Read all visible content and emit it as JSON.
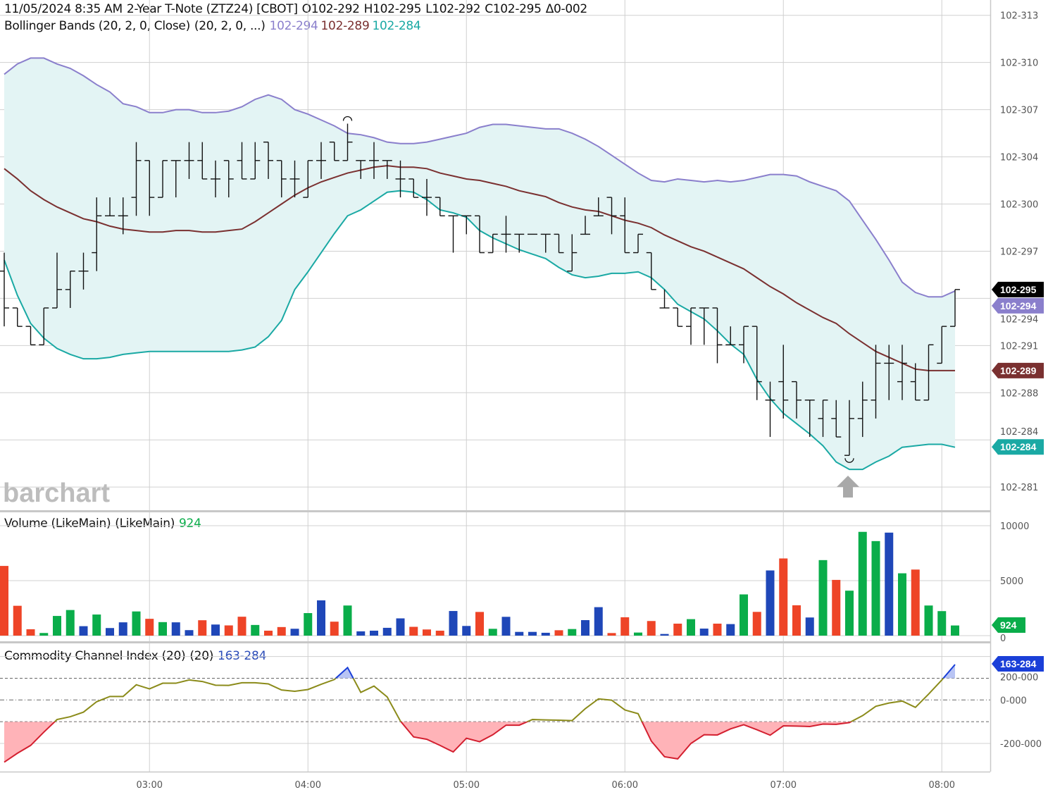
{
  "header": {
    "datetime": "11/05/2024 8:35 AM",
    "instrument": "2-Year T-Note (ZTZ24) [CBOT]",
    "open": "O102-292",
    "high": "H102-295",
    "low": "L102-292",
    "close": "C102-295",
    "change": "Δ0-002"
  },
  "bollinger_legend": {
    "label": "Bollinger Bands (20, 2, 0, Close)",
    "params": "(20, 2, 0, ...)",
    "upper": "102-294",
    "middle": "102-289",
    "lower": "102-284"
  },
  "volume_legend": {
    "label": "Volume (LikeMain)",
    "params": "(LikeMain)",
    "value": "924"
  },
  "cci_legend": {
    "label": "Commodity Channel Index (20)",
    "params": "(20)",
    "value": "163-284"
  },
  "watermark": "barchart",
  "colors": {
    "upper_band": "#8a7fcc",
    "middle_band": "#7a3030",
    "lower_band": "#1aa9a4",
    "band_fill": "#e3f4f4",
    "vol_up": "#0aad4a",
    "vol_down": "#ee4427",
    "vol_unch": "#1f47b8",
    "cci_line": "#8b8b1a",
    "cci_low": "#d42030",
    "cci_high": "#1a3fd8",
    "cci_low_fill": "#ffb3b8",
    "cci_high_fill": "#b8c4f4",
    "last_price_tag": "#000000"
  },
  "tags": {
    "last": "102-295",
    "upper": "102-294",
    "middle": "102-289",
    "lower": "102-284",
    "volume": "924",
    "cci": "163-284"
  },
  "chart_data": [
    {
      "type": "ohlc",
      "price_handle": 102,
      "price_unit": "32nds",
      "y_ticks": [
        {
          "label": "102-313",
          "value": 31.36
        },
        {
          "label": "102-310",
          "value": 31.04
        },
        {
          "label": "102-307",
          "value": 30.72
        },
        {
          "label": "102-304",
          "value": 30.4
        },
        {
          "label": "102-300",
          "value": 30.08
        },
        {
          "label": "102-297",
          "value": 29.76
        },
        {
          "label": "102-294",
          "value": 29.44
        },
        {
          "label": "102-291",
          "value": 29.12
        },
        {
          "label": "102-288",
          "value": 28.8
        },
        {
          "label": "102-284",
          "value": 28.48
        },
        {
          "label": "102-281",
          "value": 28.16
        }
      ],
      "x_ticks": [
        "03:00",
        "04:00",
        "05:00",
        "06:00",
        "07:00",
        "08:00"
      ],
      "grid": true,
      "times": [
        "02:05",
        "02:10",
        "02:15",
        "02:20",
        "02:25",
        "02:30",
        "02:35",
        "02:40",
        "02:45",
        "02:50",
        "02:55",
        "03:00",
        "03:05",
        "03:10",
        "03:15",
        "03:20",
        "03:25",
        "03:30",
        "03:35",
        "03:40",
        "03:45",
        "03:50",
        "03:55",
        "04:00",
        "04:05",
        "04:10",
        "04:15",
        "04:20",
        "04:25",
        "04:30",
        "04:35",
        "04:40",
        "04:45",
        "04:50",
        "04:55",
        "05:00",
        "05:05",
        "05:10",
        "05:15",
        "05:20",
        "05:25",
        "05:30",
        "05:35",
        "05:40",
        "05:45",
        "05:50",
        "05:55",
        "06:00",
        "06:05",
        "06:10",
        "06:15",
        "06:20",
        "06:25",
        "06:30",
        "06:35",
        "06:40",
        "06:45",
        "06:50",
        "06:55",
        "07:00",
        "07:05",
        "07:10",
        "07:15",
        "07:20",
        "07:25",
        "07:30",
        "07:35",
        "07:40",
        "07:45",
        "07:50",
        "07:55",
        "08:00",
        "08:05"
      ],
      "ohlc": [
        [
          29.625,
          29.75,
          29.25,
          29.375
        ],
        [
          29.375,
          29.375,
          29.25,
          29.25
        ],
        [
          29.25,
          29.25,
          29.125,
          29.125
        ],
        [
          29.125,
          29.375,
          29.125,
          29.375
        ],
        [
          29.375,
          29.75,
          29.375,
          29.5
        ],
        [
          29.5,
          29.625,
          29.375,
          29.625
        ],
        [
          29.625,
          29.75,
          29.5,
          29.625
        ],
        [
          29.75,
          30.125,
          29.625,
          30
        ],
        [
          30,
          30.125,
          30,
          30
        ],
        [
          30,
          30.125,
          29.875,
          30
        ],
        [
          30.125,
          30.5,
          30,
          30.375
        ],
        [
          30.375,
          30.375,
          30,
          30.125
        ],
        [
          30.125,
          30.375,
          30.125,
          30.375
        ],
        [
          30.375,
          30.375,
          30.125,
          30.375
        ],
        [
          30.375,
          30.5,
          30.25,
          30.375
        ],
        [
          30.375,
          30.5,
          30.25,
          30.25
        ],
        [
          30.25,
          30.375,
          30.125,
          30.25
        ],
        [
          30.375,
          30.375,
          30.125,
          30.25
        ],
        [
          30.375,
          30.5,
          30.25,
          30.25
        ],
        [
          30.25,
          30.5,
          30.25,
          30.375
        ],
        [
          30.5,
          30.5,
          30.25,
          30.375
        ],
        [
          30.375,
          30.375,
          30.125,
          30.25
        ],
        [
          30.25,
          30.375,
          30.125,
          30.25
        ],
        [
          30.125,
          30.375,
          30.125,
          30.375
        ],
        [
          30.375,
          30.5,
          30.25,
          30.375
        ],
        [
          30.5,
          30.5,
          30.375,
          30.375
        ],
        [
          30.375,
          30.625,
          30.375,
          30.5
        ],
        [
          30.375,
          30.375,
          30.25,
          30.375
        ],
        [
          30.375,
          30.5,
          30.25,
          30.375
        ],
        [
          30.375,
          30.375,
          30.25,
          30.375
        ],
        [
          30.25,
          30.375,
          30.125,
          30.25
        ],
        [
          30.25,
          30.25,
          30.125,
          30.125
        ],
        [
          30.125,
          30.25,
          30,
          30.125
        ],
        [
          30.125,
          30.125,
          30,
          30
        ],
        [
          30,
          30,
          29.75,
          30
        ],
        [
          30,
          30,
          29.875,
          30
        ],
        [
          30,
          30,
          29.75,
          29.75
        ],
        [
          29.75,
          29.875,
          29.75,
          29.875
        ],
        [
          29.875,
          30,
          29.75,
          29.875
        ],
        [
          29.875,
          29.875,
          29.75,
          29.875
        ],
        [
          29.875,
          29.875,
          29.875,
          29.875
        ],
        [
          29.875,
          29.875,
          29.75,
          29.875
        ],
        [
          29.875,
          29.875,
          29.75,
          29.75
        ],
        [
          29.625,
          29.875,
          29.625,
          29.75
        ],
        [
          29.875,
          30,
          29.875,
          29.875
        ],
        [
          30,
          30.125,
          30,
          30
        ],
        [
          30.125,
          30.125,
          29.875,
          30
        ],
        [
          30,
          30.125,
          29.75,
          29.75
        ],
        [
          29.75,
          29.875,
          29.75,
          29.875
        ],
        [
          29.75,
          29.75,
          29.5,
          29.5
        ],
        [
          29.375,
          29.5,
          29.375,
          29.375
        ],
        [
          29.375,
          29.375,
          29.25,
          29.25
        ],
        [
          29.25,
          29.375,
          29.125,
          29.375
        ],
        [
          29.375,
          29.375,
          29.125,
          29.375
        ],
        [
          29.375,
          29.375,
          29,
          29.125
        ],
        [
          29.125,
          29.25,
          29.125,
          29.125
        ],
        [
          29.125,
          29.25,
          29,
          29.25
        ],
        [
          29.25,
          29.25,
          28.75,
          28.875
        ],
        [
          28.75,
          28.875,
          28.5,
          28.75
        ],
        [
          28.875,
          29.125,
          28.625,
          28.75
        ],
        [
          28.875,
          28.875,
          28.625,
          28.75
        ],
        [
          28.75,
          28.75,
          28.5,
          28.75
        ],
        [
          28.625,
          28.75,
          28.5,
          28.75
        ],
        [
          28.625,
          28.75,
          28.5,
          28.5
        ],
        [
          28.375,
          28.75,
          28.375,
          28.625
        ],
        [
          28.625,
          28.875,
          28.5,
          28.75
        ],
        [
          28.75,
          29.125,
          28.625,
          29
        ],
        [
          29,
          29.125,
          28.75,
          29
        ],
        [
          28.875,
          29.125,
          28.75,
          29
        ],
        [
          28.875,
          29,
          28.75,
          28.75
        ],
        [
          28.75,
          29.125,
          28.75,
          29.125
        ],
        [
          29,
          29.25,
          29,
          29.25
        ],
        [
          29.25,
          29.5,
          29.25,
          29.5
        ]
      ],
      "high_marker_index": 26,
      "low_marker_index": 64,
      "bollinger": {
        "upper": [
          30.96,
          31.03,
          31.07,
          31.07,
          31.03,
          31.0,
          30.95,
          30.89,
          30.84,
          30.76,
          30.74,
          30.7,
          30.7,
          30.72,
          30.72,
          30.7,
          30.7,
          30.71,
          30.74,
          30.79,
          30.82,
          30.79,
          30.72,
          30.69,
          30.65,
          30.61,
          30.56,
          30.55,
          30.53,
          30.5,
          30.49,
          30.49,
          30.5,
          30.52,
          30.54,
          30.56,
          30.6,
          30.62,
          30.62,
          30.61,
          30.6,
          30.59,
          30.59,
          30.56,
          30.52,
          30.47,
          30.41,
          30.35,
          30.29,
          30.24,
          30.23,
          30.25,
          30.24,
          30.23,
          30.24,
          30.23,
          30.24,
          30.26,
          30.28,
          30.28,
          30.27,
          30.23,
          30.2,
          30.17,
          30.1,
          29.97,
          29.84,
          29.7,
          29.55,
          29.48,
          29.45,
          29.45,
          29.49
        ],
        "middle": [
          30.32,
          30.25,
          30.17,
          30.11,
          30.06,
          30.02,
          29.98,
          29.96,
          29.93,
          29.91,
          29.9,
          29.89,
          29.89,
          29.9,
          29.9,
          29.89,
          29.89,
          29.9,
          29.91,
          29.96,
          30.02,
          30.08,
          30.14,
          30.19,
          30.23,
          30.26,
          30.29,
          30.31,
          30.33,
          30.34,
          30.33,
          30.33,
          30.32,
          30.29,
          30.27,
          30.25,
          30.24,
          30.22,
          30.2,
          30.17,
          30.15,
          30.13,
          30.09,
          30.06,
          30.04,
          30.03,
          30.0,
          29.97,
          29.95,
          29.92,
          29.87,
          29.83,
          29.79,
          29.76,
          29.72,
          29.68,
          29.64,
          29.58,
          29.52,
          29.47,
          29.41,
          29.36,
          29.31,
          29.27,
          29.2,
          29.14,
          29.08,
          29.04,
          29.0,
          28.96,
          28.95,
          28.95,
          28.95
        ],
        "lower": [
          29.7,
          29.46,
          29.27,
          29.17,
          29.1,
          29.06,
          29.03,
          29.03,
          29.04,
          29.06,
          29.07,
          29.08,
          29.08,
          29.08,
          29.08,
          29.08,
          29.08,
          29.08,
          29.09,
          29.11,
          29.18,
          29.29,
          29.5,
          29.62,
          29.75,
          29.88,
          30.0,
          30.04,
          30.1,
          30.16,
          30.17,
          30.16,
          30.11,
          30.04,
          30.02,
          29.99,
          29.9,
          29.85,
          29.81,
          29.77,
          29.74,
          29.71,
          29.65,
          29.6,
          29.58,
          29.59,
          29.61,
          29.61,
          29.62,
          29.58,
          29.5,
          29.4,
          29.35,
          29.3,
          29.22,
          29.13,
          29.06,
          28.89,
          28.76,
          28.66,
          28.59,
          28.52,
          28.44,
          28.33,
          28.28,
          28.28,
          28.33,
          28.37,
          28.43,
          28.44,
          28.45,
          28.45,
          28.43
        ]
      }
    },
    {
      "type": "bar",
      "title": "Volume (LikeMain)",
      "y_ticks": [
        {
          "label": "10000",
          "value": 10000
        },
        {
          "label": "5000",
          "value": 5000
        },
        {
          "label": "0",
          "value": 0
        }
      ],
      "values": [
        6340,
        2715,
        580,
        240,
        1790,
        2330,
        860,
        1920,
        690,
        1210,
        2200,
        1530,
        1230,
        1210,
        500,
        1400,
        1010,
        930,
        1720,
        970,
        450,
        780,
        625,
        2050,
        3210,
        1270,
        2740,
        390,
        450,
        710,
        1570,
        800,
        560,
        450,
        2240,
        880,
        2155,
        620,
        1710,
        340,
        340,
        260,
        490,
        600,
        1410,
        2590,
        235,
        1670,
        280,
        1330,
        150,
        1090,
        1500,
        640,
        1090,
        1050,
        3750,
        2160,
        5930,
        7020,
        2760,
        1650,
        6870,
        5070,
        4090,
        9440,
        8600,
        9370,
        5670,
        6010,
        2740,
        2230,
        924
      ],
      "direction": [
        "down",
        "down",
        "down",
        "up",
        "up",
        "up",
        "unch",
        "up",
        "unch",
        "unch",
        "up",
        "down",
        "up",
        "unch",
        "unch",
        "down",
        "unch",
        "down",
        "down",
        "up",
        "down",
        "down",
        "unch",
        "up",
        "unch",
        "down",
        "up",
        "unch",
        "unch",
        "unch",
        "unch",
        "down",
        "down",
        "down",
        "unch",
        "unch",
        "down",
        "up",
        "unch",
        "unch",
        "unch",
        "unch",
        "down",
        "up",
        "unch",
        "unch",
        "down",
        "down",
        "up",
        "down",
        "unch",
        "down",
        "up",
        "unch",
        "down",
        "unch",
        "up",
        "down",
        "unch",
        "down",
        "down",
        "unch",
        "up",
        "down",
        "up",
        "up",
        "up",
        "unch",
        "up",
        "down",
        "up",
        "up",
        "up"
      ]
    },
    {
      "type": "line",
      "title": "Commodity Channel Index (20)",
      "y_ticks": [
        {
          "label": "200-000",
          "value": 200
        },
        {
          "label": "0-000",
          "value": 0
        },
        {
          "label": "-200-000",
          "value": -200
        }
      ],
      "overbought": 100,
      "oversold": -100,
      "values": [
        -286,
        -245,
        -209,
        -148,
        -90,
        -77,
        -56,
        -8,
        16,
        16,
        70,
        51,
        77,
        77,
        92,
        85,
        68,
        67,
        79,
        79,
        74,
        46,
        40,
        48,
        72,
        94,
        149,
        35,
        64,
        14,
        -97,
        -170,
        -181,
        -209,
        -239,
        -176,
        -192,
        -160,
        -116,
        -116,
        -90,
        -92,
        -93,
        -95,
        -40,
        5,
        -1,
        -46,
        -63,
        -189,
        -261,
        -271,
        -200,
        -160,
        -161,
        -133,
        -114,
        -137,
        -162,
        -119,
        -120,
        -122,
        -111,
        -112,
        -104,
        -72,
        -29,
        -14,
        -5,
        -34,
        27,
        92,
        163
      ]
    }
  ]
}
